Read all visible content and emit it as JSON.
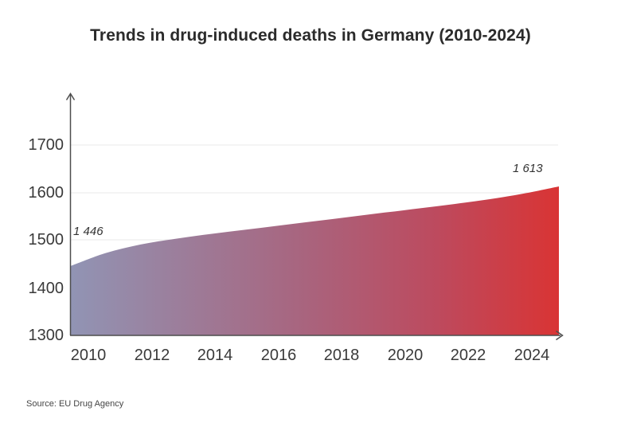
{
  "title": "Trends in drug-induced deaths in Germany (2010-2024)",
  "source_note": "Source: EU Drug Agency",
  "chart_data": {
    "type": "area",
    "title": "Trends in drug-induced deaths in Germany (2010-2024)",
    "xlabel": "",
    "ylabel": "",
    "x": [
      2010,
      2011,
      2012,
      2013,
      2014,
      2015,
      2016,
      2017,
      2018,
      2019,
      2020,
      2021,
      2022,
      2023,
      2024
    ],
    "values": [
      1446,
      1473,
      1491,
      1503,
      1513,
      1522,
      1531,
      1540,
      1549,
      1558,
      1567,
      1576,
      1586,
      1598,
      1613
    ],
    "labeled_points": [
      {
        "x": 2010,
        "value": 1446,
        "label": "1 446"
      },
      {
        "x": 2024,
        "value": 1613,
        "label": "1 613"
      }
    ],
    "point_labels": {
      "first": "1 446",
      "last": "1 613"
    },
    "yticks": [
      1300,
      1400,
      1500,
      1600,
      1700
    ],
    "xticks": [
      2010,
      2012,
      2014,
      2016,
      2018,
      2020,
      2022,
      2024
    ],
    "y_axis_range": [
      1300,
      1700
    ],
    "grid": "horizontal",
    "legend": "none",
    "gradient_colors": [
      "#9194b4",
      "#a8657f",
      "#bd4a5e",
      "#d93434"
    ],
    "gradient_offsets": [
      "0%",
      "47%",
      "75%",
      "100%"
    ],
    "axis_color": "#4d4d4d",
    "gridline_color": "#eaeaea"
  }
}
